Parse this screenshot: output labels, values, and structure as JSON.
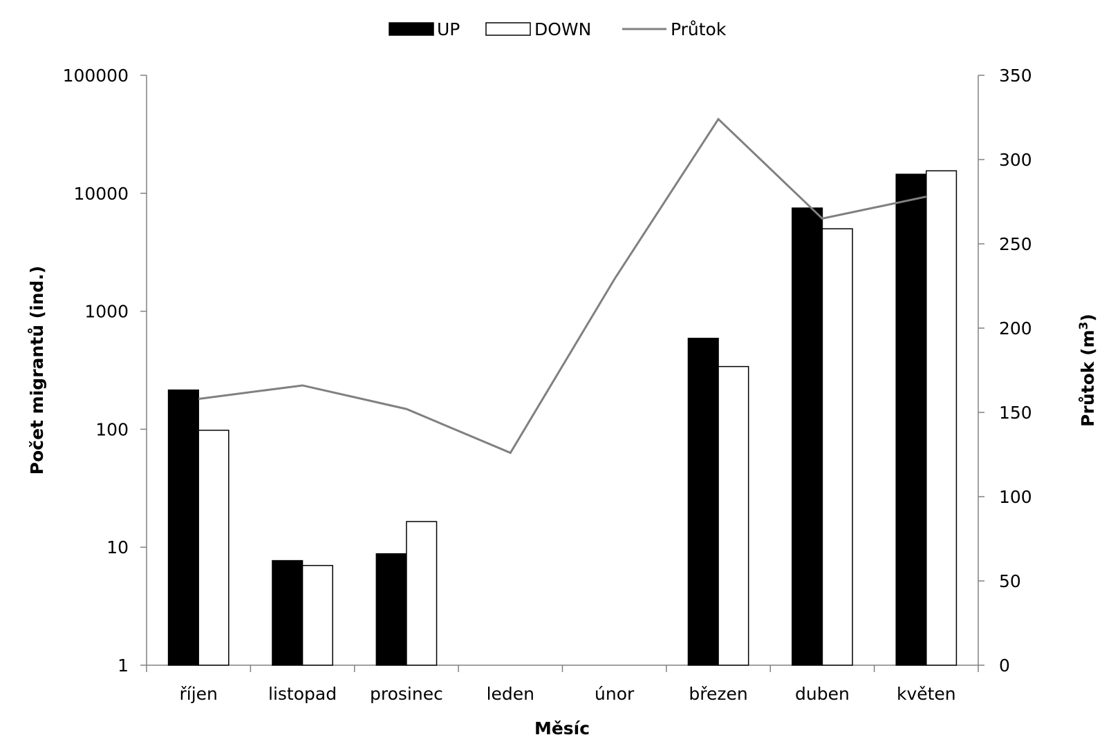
{
  "chart_data": {
    "type": "bar",
    "categories": [
      "říjen",
      "listopad",
      "prosinec",
      "leden",
      "únor",
      "březen",
      "duben",
      "květen"
    ],
    "series": [
      {
        "name": "UP",
        "type": "bar",
        "axis": "left",
        "values": [
          215,
          7.7,
          8.8,
          null,
          null,
          590,
          7500,
          14500
        ]
      },
      {
        "name": "DOWN",
        "type": "bar",
        "axis": "left",
        "values": [
          98,
          7,
          16.5,
          null,
          null,
          340,
          5000,
          15500
        ]
      },
      {
        "name": "Průtok",
        "type": "line",
        "axis": "right",
        "values": [
          158,
          166,
          152,
          126,
          229,
          324,
          265,
          278
        ]
      }
    ],
    "xlabel": "Měsíc",
    "ylabel": "Počet migrantů (ind.)",
    "y2label_main": "Průtok (m",
    "y2label_sup": "3",
    "y2label_end": ")",
    "y_scale": "log",
    "ylim": [
      1,
      100000
    ],
    "y_ticks": [
      "1",
      "10",
      "100",
      "1000",
      "10000",
      "100000"
    ],
    "y2lim": [
      0,
      350
    ],
    "y2_ticks": [
      "0",
      "50",
      "100",
      "150",
      "200",
      "250",
      "300",
      "350"
    ],
    "legend_position": "top-center",
    "grid": false,
    "colors": {
      "UP": "#000000",
      "DOWN": "#ffffff",
      "Průtok": "#808080",
      "axis": "#808080"
    }
  }
}
